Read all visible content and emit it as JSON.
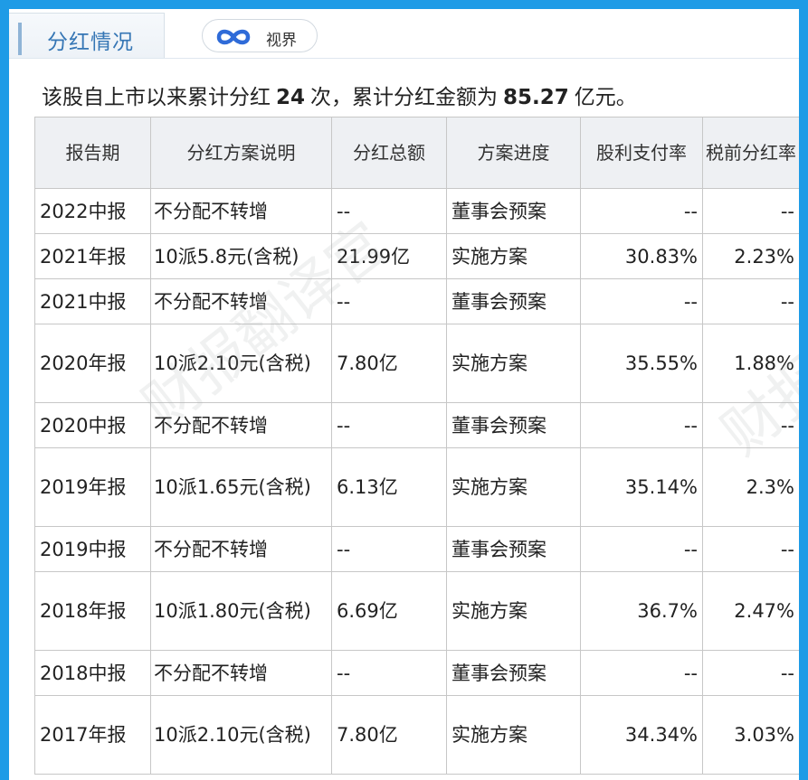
{
  "tab": {
    "title": "分红情况",
    "shijie_label": "视界"
  },
  "summary": {
    "prefix": "该股自上市以来累计分红",
    "count": "24",
    "middle": "次，累计分红金额为",
    "amount": "85.27",
    "suffix": "亿元。"
  },
  "table": {
    "headers": [
      "报告期",
      "分红方案说明",
      "分红总额",
      "方案进度",
      "股利支付率",
      "税前分红率"
    ],
    "rows": [
      [
        "2022中报",
        "不分配不转增",
        "--",
        "董事会预案",
        "--",
        "--"
      ],
      [
        "2021年报",
        "10派5.8元(含税)",
        "21.99亿",
        "实施方案",
        "30.83%",
        "2.23%"
      ],
      [
        "2021中报",
        "不分配不转增",
        "--",
        "董事会预案",
        "--",
        "--"
      ],
      [
        "2020年报",
        "10派2.10元(含税)",
        "7.80亿",
        "实施方案",
        "35.55%",
        "1.88%"
      ],
      [
        "2020中报",
        "不分配不转增",
        "--",
        "董事会预案",
        "--",
        "--"
      ],
      [
        "2019年报",
        "10派1.65元(含税)",
        "6.13亿",
        "实施方案",
        "35.14%",
        "2.3%"
      ],
      [
        "2019中报",
        "不分配不转增",
        "--",
        "董事会预案",
        "--",
        "--"
      ],
      [
        "2018年报",
        "10派1.80元(含税)",
        "6.69亿",
        "实施方案",
        "36.7%",
        "2.47%"
      ],
      [
        "2018中报",
        "不分配不转增",
        "--",
        "董事会预案",
        "--",
        "--"
      ],
      [
        "2017年报",
        "10派2.10元(含税)",
        "7.80亿",
        "实施方案",
        "34.34%",
        "3.03%"
      ]
    ]
  },
  "watermark": "财报翻译官",
  "colors": {
    "frame": "#1e9be6",
    "accent": "#3576b5",
    "header_bg": "#eef0f3",
    "icon": "#2f6bd8"
  }
}
